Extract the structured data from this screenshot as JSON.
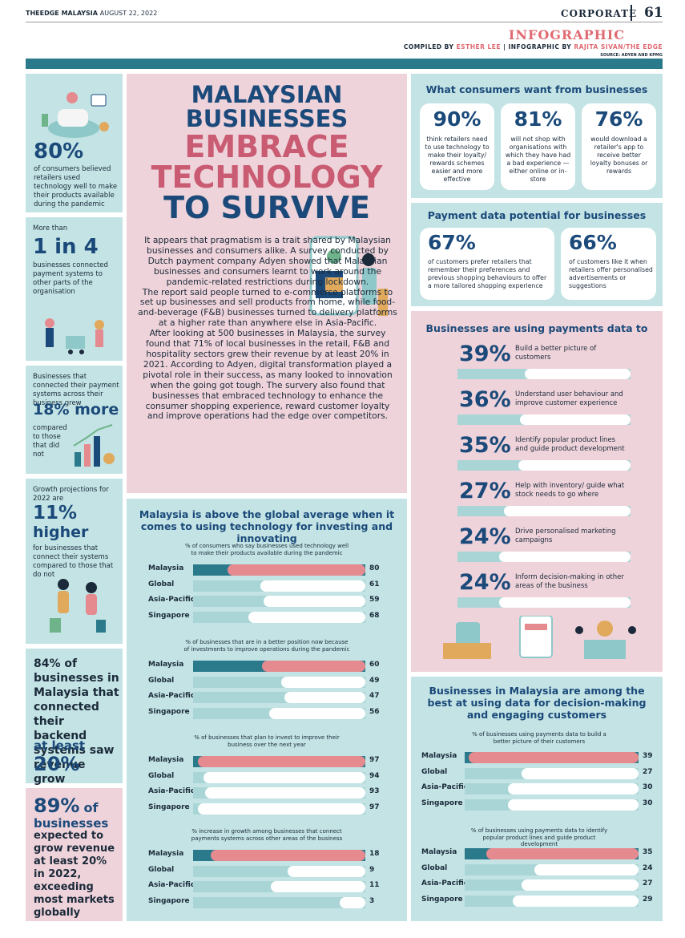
{
  "header": {
    "logo": "THEEDGE",
    "logo_sub": "MALAYSIA",
    "date": "AUGUST 22, 2022",
    "section": "CORPORATE",
    "page_number": "61",
    "kicker": "INFOGRAPHIC",
    "credits_prefix": "COMPILED BY",
    "compiler": "ESTHER LEE",
    "credits_mid": "INFOGRAPHIC BY",
    "designer": "RAJITA SIVAN/THE EDGE",
    "source": "SOURCE: ADYEN AND KPMG"
  },
  "colors": {
    "navy": "#1b4a7a",
    "pink": "#e58a8f",
    "teal_light": "#c3e3e4",
    "teal_dark": "#2b7a8c",
    "pink_bg": "#efd3da",
    "bar_bg": "#a9d5d6"
  },
  "title": {
    "line1": "MALAYSIAN",
    "line2": "BUSINESSES",
    "line3": "EMBRACE",
    "line4": "TECHNOLOGY",
    "line5": "TO SURVIVE"
  },
  "body": "It appears that pragmatism is a trait shared by Malaysian businesses and consumers alike. A survey conducted by Dutch payment company Adyen showed that Malaysian businesses and consumers learnt to work around the pandemic-related restrictions during lockdown.\nThe report said people turned to e-commerce platforms to set up businesses and sell products from home, while food-and-beverage (F&B) businesses turned to delivery platforms at a higher rate than anywhere else in Asia-Pacific.\nAfter looking at 500 businesses in Malaysia, the survey found that 71% of local businesses in the retail, F&B and hospitality sectors grew their revenue by at least 20% in 2021. According to Adyen, digital transformation played a pivotal role in their success, as many looked to innovation when the going got tough. The survery also found that businesses that embraced technology to enhance the consumer shopping experience, reward customer loyalty and improve operations had the edge over competitors.",
  "left": {
    "s1": {
      "big": "80%",
      "text": "of consumers believed retailers used technology well to make their products available during the pandemic"
    },
    "s2": {
      "pre": "More than",
      "big": "1 in 4",
      "text": "businesses connected payment systems to other parts of the organisation"
    },
    "s3": {
      "pre": "Businesses that connected their payment systems across their business grew",
      "big": "18% more",
      "text": "compared to those that did not"
    },
    "s4": {
      "pre": "Growth projections for 2022 are",
      "big1": "11%",
      "big2": "higher",
      "text": "for businesses that connect their systems compared to those that do not"
    },
    "s5": {
      "text": "84% of businesses in Malaysia that connected their backend systems saw revenue grow",
      "hl": "at least",
      "big": "20%"
    },
    "s6": {
      "big": "89%",
      "of": "of",
      "hl": "businesses",
      "text": "expected to grow revenue at least 20% in 2022, exceeding most markets globally"
    }
  },
  "want": {
    "title": "What consumers want from businesses",
    "items": [
      {
        "pct": "90%",
        "text": "think retailers need to use technology to make their loyalty/ rewards schemes easier and more effective"
      },
      {
        "pct": "81%",
        "text": "will not shop with organisations with which they have had a bad experience — either online or in-store"
      },
      {
        "pct": "76%",
        "text": "would download a retailer's app to receive better loyalty bonuses or rewards"
      }
    ]
  },
  "payment": {
    "title": "Payment data potential for businesses",
    "items": [
      {
        "pct": "67%",
        "text": "of customers prefer retailers that remember their preferences and previous shopping behaviours to offer a more tailored shopping experience"
      },
      {
        "pct": "66%",
        "text": "of customers like it when retailers offer personalised advertisements or suggestions"
      }
    ]
  },
  "using": {
    "title": "Businesses are using payments data to",
    "items": [
      {
        "pct": "39%",
        "text": "Build a better picture of customers"
      },
      {
        "pct": "36%",
        "text": "Understand user behaviour and improve customer experience"
      },
      {
        "pct": "35%",
        "text": "Identify popular product lines and guide product development"
      },
      {
        "pct": "27%",
        "text": "Help with inventory/ guide what stock needs to go where"
      },
      {
        "pct": "24%",
        "text": "Drive personalised marketing campaigns"
      },
      {
        "pct": "24%",
        "text": "Inform decision-making in other areas of the business"
      }
    ]
  },
  "chart_data": [
    {
      "type": "bar",
      "group": "Malaysia is above the global average when it comes to using technology for investing and innovating",
      "title": "% of consumers who say businesses used technology well to make their products available during the pandemic",
      "categories": [
        "Malaysia",
        "Global",
        "Asia-Pacific",
        "Singapore"
      ],
      "values": [
        80,
        61,
        59,
        68
      ],
      "xlim": [
        0,
        100
      ]
    },
    {
      "type": "bar",
      "title": "% of businesses that are in a better position now because of investments to improve operations during the pandemic",
      "categories": [
        "Malaysia",
        "Global",
        "Asia-Pacific",
        "Singapore"
      ],
      "values": [
        60,
        49,
        47,
        56
      ],
      "xlim": [
        0,
        100
      ]
    },
    {
      "type": "bar",
      "title": "% of businesses that plan to invest to improve their business over the next year",
      "categories": [
        "Malaysia",
        "Global",
        "Asia-Pacific",
        "Singapore"
      ],
      "values": [
        97,
        94,
        93,
        97
      ],
      "xlim": [
        0,
        100
      ]
    },
    {
      "type": "bar",
      "title": "% increase in growth among businesses that connect payments systems across other areas of the business",
      "categories": [
        "Malaysia",
        "Global",
        "Asia-Pacific",
        "Singapore"
      ],
      "values": [
        18,
        9,
        11,
        3
      ],
      "xlim": [
        0,
        20
      ]
    },
    {
      "type": "bar",
      "group": "Businesses in Malaysia are among the best at using data for decision-making and engaging customers",
      "title": "% of businesses using payments data to build a better picture of their customers",
      "categories": [
        "Malaysia",
        "Global",
        "Asia-Pacific",
        "Singapore"
      ],
      "values": [
        39,
        27,
        30,
        30
      ],
      "xlim": [
        0,
        40
      ]
    },
    {
      "type": "bar",
      "title": "% of businesses using payments data to identify popular product lines and guide product development",
      "categories": [
        "Malaysia",
        "Global",
        "Asia-Pacific",
        "Singapore"
      ],
      "values": [
        35,
        24,
        27,
        29
      ],
      "xlim": [
        0,
        40
      ]
    }
  ]
}
